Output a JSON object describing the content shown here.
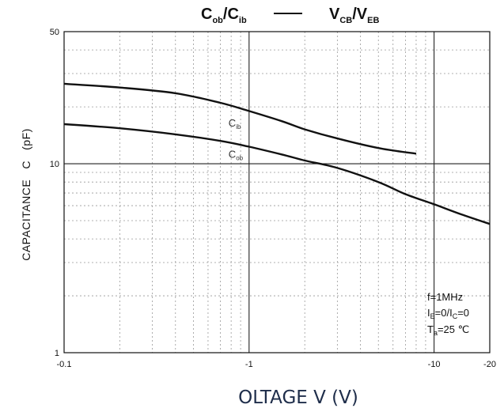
{
  "chart_data": {
    "type": "line",
    "title_left": {
      "main": "C",
      "sub": "ob",
      "slash": "/C",
      "sub2": "ib"
    },
    "title_right": {
      "main": "V",
      "sub": "CB",
      "slash": "/V",
      "sub2": "EB"
    },
    "xlabel": "OLTAGE V (V)",
    "ylabel": "CAPACITANCE   C   (pF)",
    "x_scale": "log",
    "y_scale": "log",
    "xlim": [
      -0.1,
      -20
    ],
    "ylim": [
      1,
      50
    ],
    "x_ticks": [
      {
        "value": -0.1,
        "label": "-0.1"
      },
      {
        "value": -1,
        "label": "-1"
      },
      {
        "value": -10,
        "label": "-10"
      },
      {
        "value": -20,
        "label": "-20"
      }
    ],
    "y_ticks": [
      {
        "value": 1,
        "label": "1"
      },
      {
        "value": 10,
        "label": "10"
      },
      {
        "value": 50,
        "label": "50"
      }
    ],
    "grid": true,
    "series": [
      {
        "label_main": "C",
        "label_sub": "ib",
        "label_at": [
          -1,
          16.5
        ],
        "points": [
          [
            -0.1,
            26.5
          ],
          [
            -0.2,
            25.3
          ],
          [
            -0.4,
            23.6
          ],
          [
            -0.7,
            21.0
          ],
          [
            -1,
            19.0
          ],
          [
            -1.5,
            16.8
          ],
          [
            -2,
            15.2
          ],
          [
            -3,
            13.6
          ],
          [
            -5,
            12.1
          ],
          [
            -8,
            11.3
          ]
        ]
      },
      {
        "label_main": "C",
        "label_sub": "ob",
        "label_at": [
          -1,
          11.3
        ],
        "points": [
          [
            -0.1,
            16.2
          ],
          [
            -0.2,
            15.4
          ],
          [
            -0.4,
            14.3
          ],
          [
            -0.7,
            13.2
          ],
          [
            -1,
            12.3
          ],
          [
            -1.5,
            11.2
          ],
          [
            -2,
            10.4
          ],
          [
            -3,
            9.5
          ],
          [
            -5,
            8.0
          ],
          [
            -7,
            6.9
          ],
          [
            -10,
            6.1
          ],
          [
            -14,
            5.4
          ],
          [
            -20,
            4.8
          ]
        ]
      }
    ],
    "annotations": [
      {
        "main": "f=1MHz",
        "sub": "",
        "tail": ""
      },
      {
        "main": "I",
        "sub": "E",
        "tail": "=0/I",
        "sub2": "C",
        "tail2": "=0"
      },
      {
        "main": "T",
        "sub": "a",
        "tail": "=25 ℃"
      }
    ]
  }
}
